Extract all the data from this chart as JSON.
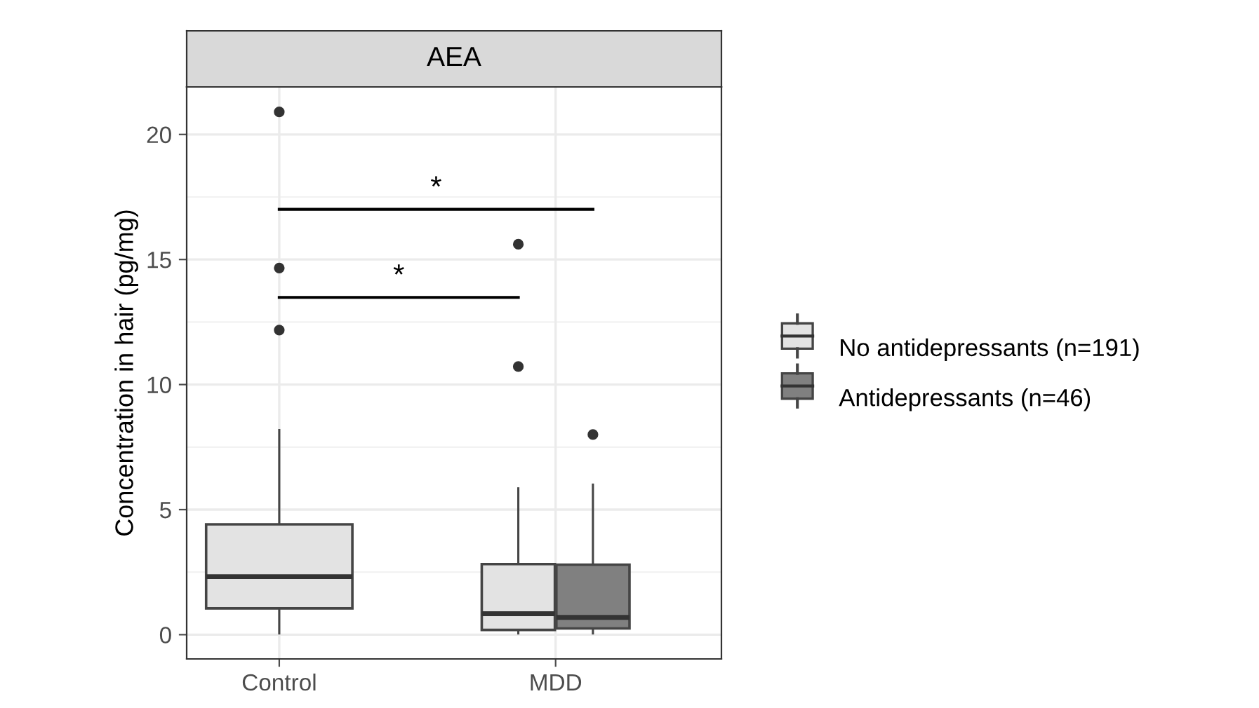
{
  "chart_data": {
    "type": "box",
    "title": "AEA",
    "ylabel": "Concentration in hair (pg/mg)",
    "categories": [
      "Control",
      "MDD"
    ],
    "series": [
      {
        "name": "No antidepressants (n=191)",
        "color": "#e3e3e3",
        "boxes": [
          {
            "low": 0.05,
            "q1": 1.05,
            "median": 2.32,
            "q3": 4.41,
            "high": 8.18,
            "outliers": [
              12.18,
              14.66,
              20.9
            ]
          },
          {
            "low": 0.05,
            "q1": 0.19,
            "median": 0.84,
            "q3": 2.82,
            "high": 5.85,
            "outliers": [
              10.72,
              15.61
            ]
          }
        ]
      },
      {
        "name": "Antidepressants (n=46)",
        "color": "#808080",
        "boxes": [
          null,
          {
            "low": 0.05,
            "q1": 0.25,
            "median": 0.69,
            "q3": 2.8,
            "high": 6.0,
            "outliers": [
              8.0
            ]
          }
        ]
      }
    ],
    "annotations": [
      "*",
      "*"
    ],
    "ylim": [
      -0.97,
      21.9
    ],
    "yticks": [
      0,
      5,
      10,
      15,
      20
    ],
    "grid": true,
    "legend": "right"
  }
}
